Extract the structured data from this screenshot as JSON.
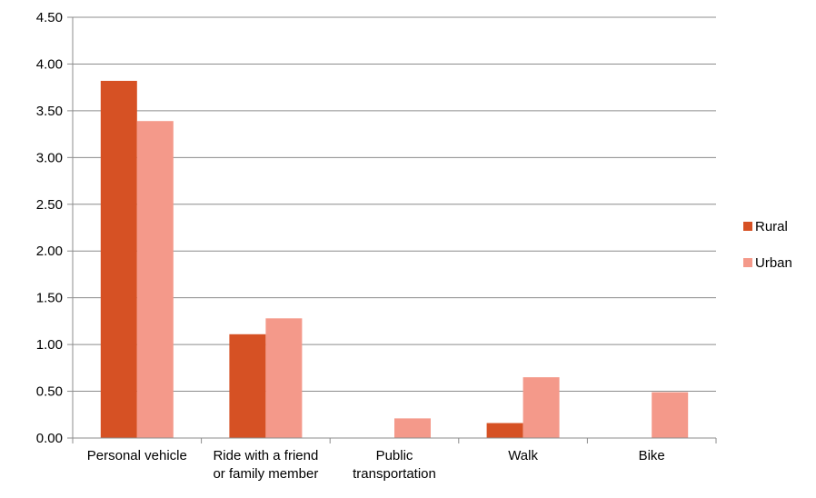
{
  "chart_data": {
    "type": "bar",
    "categories": [
      [
        "Personal vehicle"
      ],
      [
        "Ride with a friend",
        "or family member"
      ],
      [
        "Public",
        "transportation"
      ],
      [
        "Walk"
      ],
      [
        "Bike"
      ]
    ],
    "series": [
      {
        "name": "Rural",
        "values": [
          3.82,
          1.11,
          0,
          0.16,
          0
        ],
        "color": "#d65124"
      },
      {
        "name": "Urban",
        "values": [
          3.39,
          1.28,
          0.21,
          0.65,
          0.49
        ],
        "color": "#f4998a"
      }
    ],
    "yticks": [
      "0.00",
      "0.50",
      "1.00",
      "1.50",
      "2.00",
      "2.50",
      "3.00",
      "3.50",
      "4.00",
      "4.50"
    ],
    "ylim": [
      0,
      4.5
    ],
    "grid": true,
    "legend_position": "right",
    "title": "",
    "xlabel": "",
    "ylabel": ""
  }
}
